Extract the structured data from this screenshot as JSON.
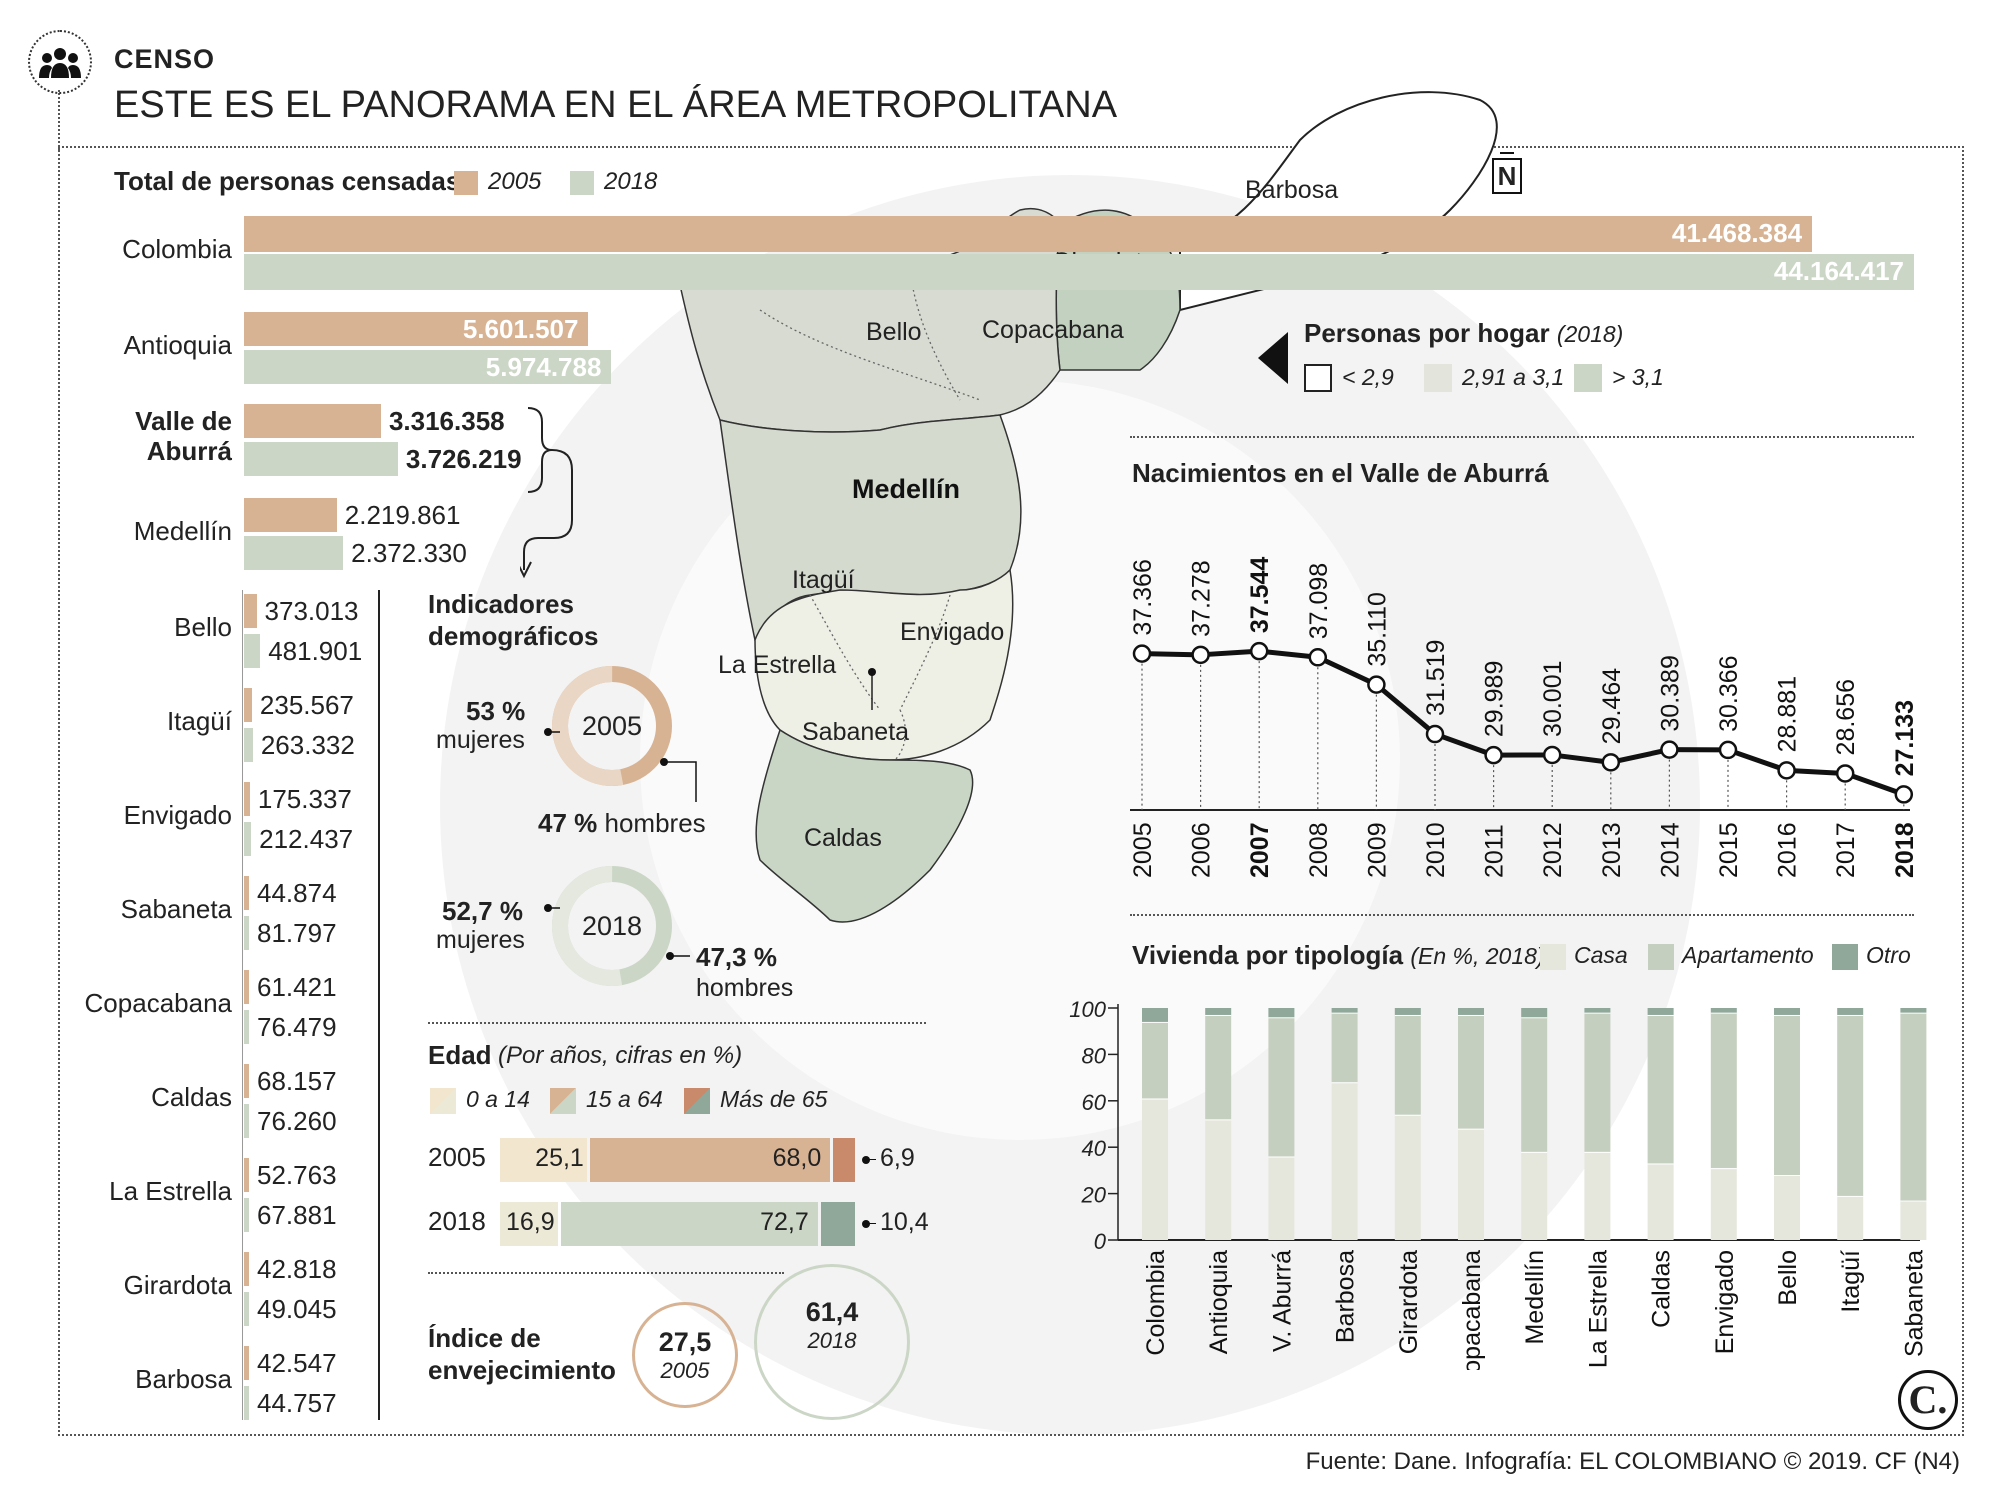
{
  "header": {
    "section": "CENSO",
    "title": "ESTE ES EL PANORAMA EN EL ÁREA METROPOLITANA",
    "icon": "people-group-icon"
  },
  "north_label": "N",
  "colors": {
    "y2005": "#d7b394",
    "y2018": "#cbd6c6",
    "casa": "#e6e7dc",
    "apartamento": "#c5cfbf",
    "otro": "#8fa89a",
    "dark": "#1a1a1a"
  },
  "population": {
    "title": "Total de personas censadas",
    "legend": [
      "2005",
      "2018"
    ],
    "rows": [
      {
        "name": "Colombia",
        "v2005": "41.468.384",
        "v2018": "44.164.417",
        "n2005": 41468384,
        "n2018": 44164417
      },
      {
        "name": "Antioquia",
        "v2005": "5.601.507",
        "v2018": "5.974.788",
        "n2005": 5601507,
        "n2018": 5974788
      },
      {
        "name": "Valle de\nAburrá",
        "v2005": "3.316.358",
        "v2018": "3.726.219",
        "n2005": 3316358,
        "n2018": 3726219
      },
      {
        "name": "Medellín",
        "v2005": "2.219.861",
        "v2018": "2.372.330",
        "n2005": 2219861,
        "n2018": 2372330
      },
      {
        "name": "Bello",
        "v2005": "373.013",
        "v2018": "481.901",
        "n2005": 373013,
        "n2018": 481901
      },
      {
        "name": "Itagüí",
        "v2005": "235.567",
        "v2018": "263.332",
        "n2005": 235567,
        "n2018": 263332
      },
      {
        "name": "Envigado",
        "v2005": "175.337",
        "v2018": "212.437",
        "n2005": 175337,
        "n2018": 212437
      },
      {
        "name": "Sabaneta",
        "v2005": "44.874",
        "v2018": "81.797",
        "n2005": 44874,
        "n2018": 81797
      },
      {
        "name": "Copacabana",
        "v2005": "61.421",
        "v2018": "76.479",
        "n2005": 61421,
        "n2018": 76479
      },
      {
        "name": "Caldas",
        "v2005": "68.157",
        "v2018": "76.260",
        "n2005": 68157,
        "n2018": 76260
      },
      {
        "name": "La Estrella",
        "v2005": "52.763",
        "v2018": "67.881",
        "n2005": 52763,
        "n2018": 67881
      },
      {
        "name": "Girardota",
        "v2005": "42.818",
        "v2018": "49.045",
        "n2005": 42818,
        "n2018": 49045
      },
      {
        "name": "Barbosa",
        "v2005": "42.547",
        "v2018": "44.757",
        "n2005": 42547,
        "n2018": 44757
      }
    ]
  },
  "map": {
    "labels": [
      "Barbosa",
      "Girardota",
      "Bello",
      "Copacabana",
      "Medellín",
      "Itagüí",
      "Envigado",
      "La Estrella",
      "Sabaneta",
      "Caldas"
    ],
    "legend_title": "Personas por hogar",
    "legend_year": "(2018)",
    "legend_items": [
      "< 2,9",
      "2,91 a 3,1",
      "> 3,1"
    ]
  },
  "demographics": {
    "title_line1": "Indicadores",
    "title_line2": "demográficos",
    "d2005": {
      "year": "2005",
      "women": "53 %",
      "women_label": "mujeres",
      "men": "47 %",
      "men_label": "hombres",
      "women_pct": 53
    },
    "d2018": {
      "year": "2018",
      "women": "52,7 %",
      "women_label": "mujeres",
      "men": "47,3 %",
      "men_label": "hombres",
      "women_pct": 52.7
    }
  },
  "age": {
    "title": "Edad",
    "subtitle": "(Por años, cifras en %)",
    "legend": [
      "0 a 14",
      "15 a 64",
      "Más de 65"
    ],
    "rows": [
      {
        "year": "2005",
        "labels": [
          "25,1",
          "68,0",
          "6,9"
        ],
        "values": [
          25.1,
          68.0,
          6.9
        ]
      },
      {
        "year": "2018",
        "labels": [
          "16,9",
          "72,7",
          "10,4"
        ],
        "values": [
          16.9,
          72.7,
          10.4
        ]
      }
    ]
  },
  "aging": {
    "title_line1": "Índice de",
    "title_line2": "envejecimiento",
    "v2005": "27,5",
    "y2005": "2005",
    "v2018": "61,4",
    "y2018": "2018"
  },
  "chart_data": [
    {
      "type": "line",
      "title": "Nacimientos en el Valle de Aburrá",
      "x": [
        "2005",
        "2006",
        "2007",
        "2008",
        "2009",
        "2010",
        "2011",
        "2012",
        "2013",
        "2014",
        "2015",
        "2016",
        "2017",
        "2018"
      ],
      "labels": [
        "37.366",
        "37.278",
        "37.544",
        "37.098",
        "35.110",
        "31.519",
        "29.989",
        "30.001",
        "29.464",
        "30.389",
        "30.366",
        "28.881",
        "28.656",
        "27.133"
      ],
      "values": [
        37366,
        37278,
        37544,
        37098,
        35110,
        31519,
        29989,
        30001,
        29464,
        30389,
        30366,
        28881,
        28656,
        27133
      ],
      "highlight": [
        "2007",
        "2018"
      ]
    },
    {
      "type": "bar",
      "title": "Vivienda por tipología",
      "subtitle": "(En %, 2018)",
      "stacked": true,
      "ylim": [
        0,
        100
      ],
      "yticks": [
        "0",
        "20",
        "40",
        "60",
        "80",
        "100"
      ],
      "categories": [
        "Colombia",
        "Antioquia",
        "V. Aburrá",
        "Barbosa",
        "Girardota",
        "Copacabana",
        "Medellín",
        "La Estrella",
        "Caldas",
        "Envigado",
        "Bello",
        "Itagüí",
        "Sabaneta"
      ],
      "series": [
        {
          "name": "Casa",
          "values": [
            61,
            52,
            36,
            68,
            54,
            48,
            38,
            38,
            33,
            31,
            28,
            19,
            17
          ]
        },
        {
          "name": "Apartamento",
          "values": [
            33,
            45,
            60,
            30,
            43,
            49,
            58,
            60,
            64,
            67,
            69,
            78,
            81
          ]
        },
        {
          "name": "Otro",
          "values": [
            6,
            3,
            4,
            2,
            3,
            3,
            4,
            2,
            3,
            2,
            3,
            3,
            2
          ]
        }
      ]
    }
  ],
  "footer": {
    "source": "Fuente: Dane. Infografía: EL COLOMBIANO © 2019. CF (N4)",
    "logo": "C."
  }
}
